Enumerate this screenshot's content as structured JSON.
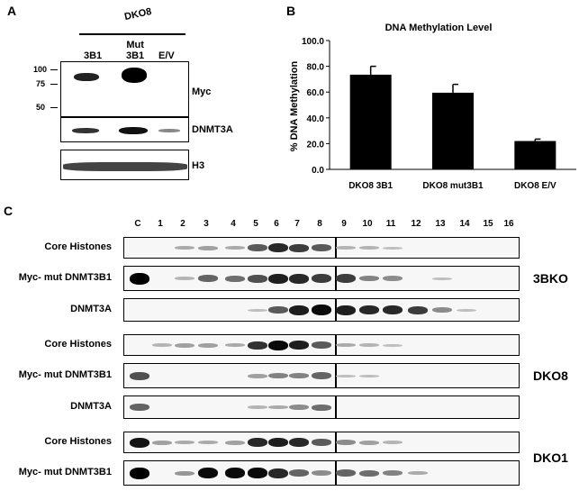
{
  "panel_a": {
    "letter": "A",
    "group_label": "DKO8",
    "lanes": [
      "3B1",
      "Mut\n3B1",
      "E/V"
    ],
    "mw_markers": [
      "100",
      "75",
      "50"
    ],
    "blot_labels": [
      "Myc",
      "DNMT3A",
      "H3"
    ]
  },
  "panel_b": {
    "letter": "B",
    "chart_data": {
      "type": "bar",
      "title": "DNA Methylation Level",
      "ylabel": "% DNA Methylation",
      "xlabel": "",
      "categories": [
        "DKO8 3B1",
        "DKO8 mut3B1",
        "DKO8 E/V"
      ],
      "values": [
        73.5,
        59.5,
        22.0
      ],
      "errors": [
        6.5,
        6.5,
        1.5
      ],
      "ylim": [
        0,
        100
      ],
      "yticks": [
        "0.0",
        "20.0",
        "40.0",
        "60.0",
        "80.0",
        "100.0"
      ],
      "bar_color": "#000000"
    }
  },
  "panel_c": {
    "letter": "C",
    "fractions": [
      "C",
      "1",
      "2",
      "3",
      "4",
      "5",
      "6",
      "7",
      "8",
      "9",
      "10",
      "11",
      "12",
      "13",
      "14",
      "15",
      "16"
    ],
    "cell_lines": [
      {
        "name": "3BKO",
        "rows": [
          "Core Histones",
          "Myc- mut DNMT3B1",
          "DNMT3A"
        ]
      },
      {
        "name": "DKO8",
        "rows": [
          "Core Histones",
          "Myc- mut DNMT3B1",
          "DNMT3A"
        ]
      },
      {
        "name": "DKO1",
        "rows": [
          "Core Histones",
          "Myc- mut DNMT3B1"
        ]
      }
    ]
  }
}
